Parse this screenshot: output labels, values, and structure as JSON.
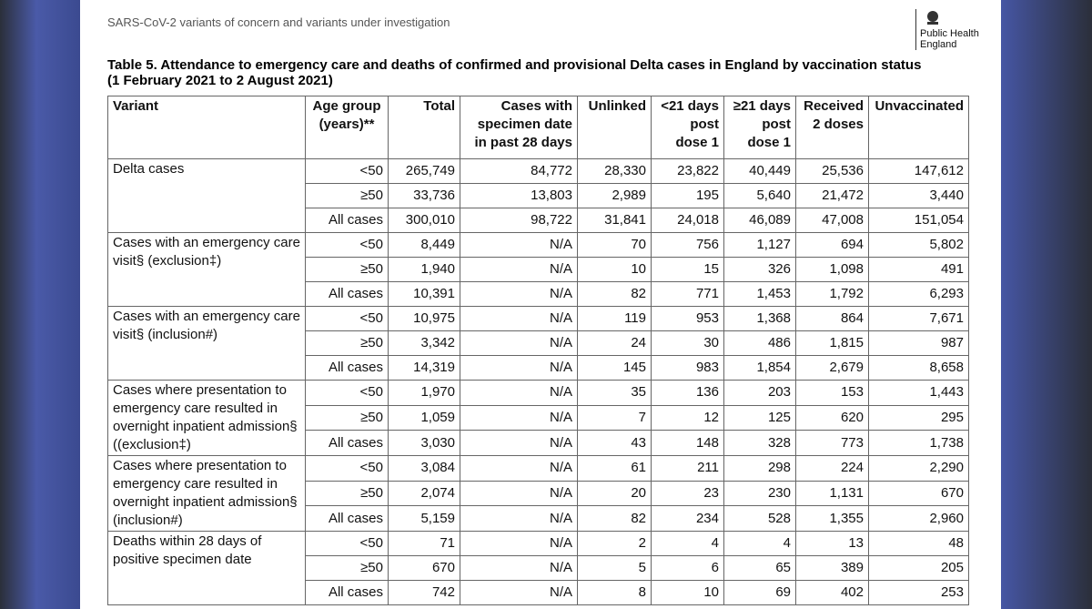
{
  "header": {
    "running_title": "SARS-CoV-2 variants of concern and variants under investigation",
    "logo": [
      "Public Health",
      "England"
    ]
  },
  "table": {
    "title": "Table 5. Attendance to emergency care and deaths of confirmed and provisional Delta cases in England by vaccination status",
    "subtitle": "(1 February 2021 to 2 August 2021)",
    "columns": [
      [
        "Variant"
      ],
      [
        "Age group",
        "(years)**"
      ],
      [
        "Total"
      ],
      [
        "Cases with",
        "specimen date",
        "in past 28 days"
      ],
      [
        "Unlinked"
      ],
      [
        "<21 days",
        "post",
        "dose 1"
      ],
      [
        "≥21 days",
        "post",
        "dose 1"
      ],
      [
        "Received",
        "2 doses"
      ],
      [
        "Unvaccinated"
      ]
    ],
    "groups": [
      {
        "variant": "Delta cases",
        "rows": [
          [
            "<50",
            "265,749",
            "84,772",
            "28,330",
            "23,822",
            "40,449",
            "25,536",
            "147,612"
          ],
          [
            "≥50",
            "33,736",
            "13,803",
            "2,989",
            "195",
            "5,640",
            "21,472",
            "3,440"
          ],
          [
            "All cases",
            "300,010",
            "98,722",
            "31,841",
            "24,018",
            "46,089",
            "47,008",
            "151,054"
          ]
        ]
      },
      {
        "variant": "Cases with an emergency care visit§ (exclusion‡)",
        "rows": [
          [
            "<50",
            "8,449",
            "N/A",
            "70",
            "756",
            "1,127",
            "694",
            "5,802"
          ],
          [
            "≥50",
            "1,940",
            "N/A",
            "10",
            "15",
            "326",
            "1,098",
            "491"
          ],
          [
            "All cases",
            "10,391",
            "N/A",
            "82",
            "771",
            "1,453",
            "1,792",
            "6,293"
          ]
        ]
      },
      {
        "variant": "Cases with an emergency care visit§ (inclusion#)",
        "rows": [
          [
            "<50",
            "10,975",
            "N/A",
            "119",
            "953",
            "1,368",
            "864",
            "7,671"
          ],
          [
            "≥50",
            "3,342",
            "N/A",
            "24",
            "30",
            "486",
            "1,815",
            "987"
          ],
          [
            "All cases",
            "14,319",
            "N/A",
            "145",
            "983",
            "1,854",
            "2,679",
            "8,658"
          ]
        ]
      },
      {
        "variant": "Cases where presentation to emergency care resulted in overnight inpatient admission§ ((exclusion‡)",
        "rows": [
          [
            "<50",
            "1,970",
            "N/A",
            "35",
            "136",
            "203",
            "153",
            "1,443"
          ],
          [
            "≥50",
            "1,059",
            "N/A",
            "7",
            "12",
            "125",
            "620",
            "295"
          ],
          [
            "All cases",
            "3,030",
            "N/A",
            "43",
            "148",
            "328",
            "773",
            "1,738"
          ]
        ]
      },
      {
        "variant": "Cases where presentation to emergency care resulted in overnight inpatient admission§ (inclusion#)",
        "rows": [
          [
            "<50",
            "3,084",
            "N/A",
            "61",
            "211",
            "298",
            "224",
            "2,290"
          ],
          [
            "≥50",
            "2,074",
            "N/A",
            "20",
            "23",
            "230",
            "1,131",
            "670"
          ],
          [
            "All cases",
            "5,159",
            "N/A",
            "82",
            "234",
            "528",
            "1,355",
            "2,960"
          ]
        ]
      },
      {
        "variant": "Deaths within 28 days of positive specimen date",
        "rows": [
          [
            "<50",
            "71",
            "N/A",
            "2",
            "4",
            "4",
            "13",
            "48"
          ],
          [
            "≥50",
            "670",
            "N/A",
            "5",
            "6",
            "65",
            "389",
            "205"
          ],
          [
            "All cases",
            "742",
            "N/A",
            "8",
            "10",
            "69",
            "402",
            "253"
          ]
        ]
      }
    ]
  }
}
